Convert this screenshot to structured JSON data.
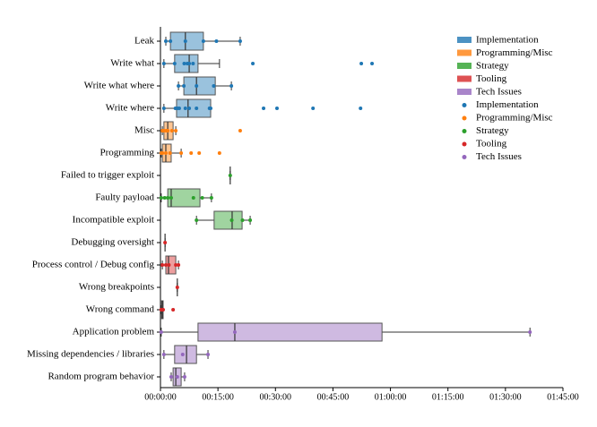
{
  "chart_data": {
    "type": "boxplot",
    "groups": [
      {
        "name": "Implementation",
        "color": "#1f77b4"
      },
      {
        "name": "Programming/Misc",
        "color": "#ff7f0e"
      },
      {
        "name": "Strategy",
        "color": "#2ca02c"
      },
      {
        "name": "Tooling",
        "color": "#d62728"
      },
      {
        "name": "Tech Issues",
        "color": "#9467bd"
      }
    ],
    "rows": [
      {
        "label": "Leak",
        "group": 0,
        "whislo": 84,
        "q1": 156,
        "med": 390,
        "q3": 672,
        "whishi": 1248,
        "points": [
          84,
          156,
          390,
          672,
          876,
          1248
        ]
      },
      {
        "label": "Write what",
        "group": 0,
        "whislo": 54,
        "q1": 222,
        "med": 450,
        "q3": 588,
        "whishi": 924,
        "points": [
          54,
          222,
          372,
          420,
          450,
          510,
          1446,
          3144,
          3312
        ]
      },
      {
        "label": "Write what where",
        "group": 0,
        "whislo": 282,
        "q1": 366,
        "med": 564,
        "q3": 858,
        "whishi": 1110,
        "points": [
          282,
          366,
          564,
          834,
          1110
        ]
      },
      {
        "label": "Write where",
        "group": 0,
        "whislo": 54,
        "q1": 252,
        "med": 432,
        "q3": 786,
        "whishi": 786,
        "points": [
          54,
          234,
          264,
          294,
          390,
          450,
          564,
          768,
          786,
          1614,
          1824,
          2388,
          3132
        ]
      },
      {
        "label": "Misc",
        "group": 1,
        "whislo": 30,
        "q1": 54,
        "med": 114,
        "q3": 198,
        "whishi": 240,
        "points": [
          30,
          54,
          90,
          114,
          180,
          240,
          1248
        ]
      },
      {
        "label": "Programming",
        "group": 1,
        "whislo": 12,
        "q1": 30,
        "med": 84,
        "q3": 168,
        "whishi": 324,
        "points": [
          12,
          30,
          84,
          150,
          324,
          480,
          606,
          924
        ]
      },
      {
        "label": "Failed to trigger exploit",
        "group": 2,
        "whislo": 1092,
        "q1": 1092,
        "med": 1092,
        "q3": 1092,
        "whishi": 1092,
        "points": [
          1092
        ]
      },
      {
        "label": "Faulty payload",
        "group": 2,
        "whislo": 12,
        "q1": 114,
        "med": 168,
        "q3": 618,
        "whishi": 798,
        "points": [
          12,
          66,
          114,
          168,
          516,
          654,
          798
        ]
      },
      {
        "label": "Incompatible exploit",
        "group": 2,
        "whislo": 564,
        "q1": 840,
        "med": 1122,
        "q3": 1278,
        "whishi": 1404,
        "points": [
          564,
          1116,
          1284,
          1404
        ]
      },
      {
        "label": "Debugging oversight",
        "group": 3,
        "whislo": 72,
        "q1": 72,
        "med": 72,
        "q3": 72,
        "whishi": 72,
        "points": [
          72
        ]
      },
      {
        "label": "Process control / Debug config",
        "group": 3,
        "whislo": 30,
        "q1": 84,
        "med": 126,
        "q3": 240,
        "whishi": 282,
        "points": [
          30,
          84,
          132,
          240,
          282
        ]
      },
      {
        "label": "Wrong breakpoints",
        "group": 3,
        "whislo": 264,
        "q1": 264,
        "med": 264,
        "q3": 264,
        "whishi": 264,
        "points": [
          264
        ]
      },
      {
        "label": "Wrong command",
        "group": 3,
        "whislo": 12,
        "q1": 18,
        "med": 30,
        "q3": 42,
        "whishi": 42,
        "points": [
          12,
          24,
          42,
          198
        ]
      },
      {
        "label": "Application problem",
        "group": 4,
        "whislo": 12,
        "q1": 588,
        "med": 1164,
        "q3": 3468,
        "whishi": 5784,
        "points": [
          12,
          1164,
          5784
        ]
      },
      {
        "label": "Missing dependencies / libraries",
        "group": 4,
        "whislo": 54,
        "q1": 222,
        "med": 408,
        "q3": 564,
        "whishi": 744,
        "points": [
          54,
          348,
          744
        ]
      },
      {
        "label": "Random program behavior",
        "group": 4,
        "whislo": 168,
        "q1": 198,
        "med": 240,
        "q3": 324,
        "whishi": 378,
        "points": [
          168,
          264,
          378
        ]
      }
    ],
    "xlim": [
      0,
      6300
    ],
    "xticks": [
      {
        "value": 0,
        "label": "00:00:00"
      },
      {
        "value": 900,
        "label": "00:15:00"
      },
      {
        "value": 1800,
        "label": "00:30:00"
      },
      {
        "value": 2700,
        "label": "00:45:00"
      },
      {
        "value": 3600,
        "label": "01:00:00"
      },
      {
        "value": 4500,
        "label": "01:15:00"
      },
      {
        "value": 5400,
        "label": "01:30:00"
      },
      {
        "value": 6300,
        "label": "01:45:00"
      }
    ],
    "legend": "upper right"
  }
}
